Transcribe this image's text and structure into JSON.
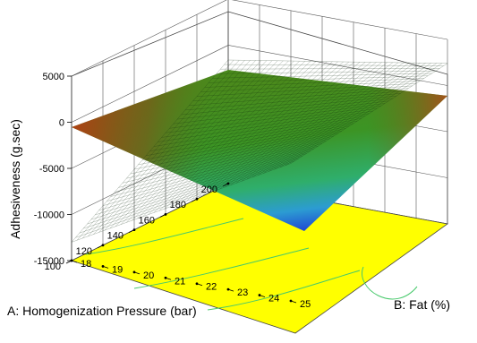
{
  "chart_data": {
    "type": "surface3d",
    "z_axis": {
      "label": "Adhesiveness (g.sec)",
      "ticks": [
        5000,
        0,
        -5000,
        -10000,
        -15000
      ],
      "range": [
        -15000,
        5000
      ]
    },
    "x_axis": {
      "label": "A: Homogenization Pressure (bar)",
      "ticks": [
        100,
        120,
        140,
        160,
        180,
        200
      ],
      "range": [
        100,
        200
      ]
    },
    "y_axis": {
      "label": "B: Fat (%)",
      "ticks": [
        18,
        19,
        20,
        21,
        22,
        23,
        24,
        25
      ],
      "range": [
        18,
        25
      ]
    },
    "surface_corners": [
      {
        "pressure": 200,
        "fat": 18,
        "adhesiveness": -1600
      },
      {
        "pressure": 200,
        "fat": 25,
        "adhesiveness": 2400
      },
      {
        "pressure": 100,
        "fat": 25,
        "adhesiveness": -100
      },
      {
        "pressure": 100,
        "fat": 18,
        "adhesiveness": -13000
      }
    ],
    "surface_colormap": [
      "#1a3fd0",
      "#2f9fd6",
      "#2fb06a",
      "#3f9a25",
      "#8a6a20",
      "#b43a14"
    ],
    "floor_color": "#ffff00",
    "grid": true
  }
}
